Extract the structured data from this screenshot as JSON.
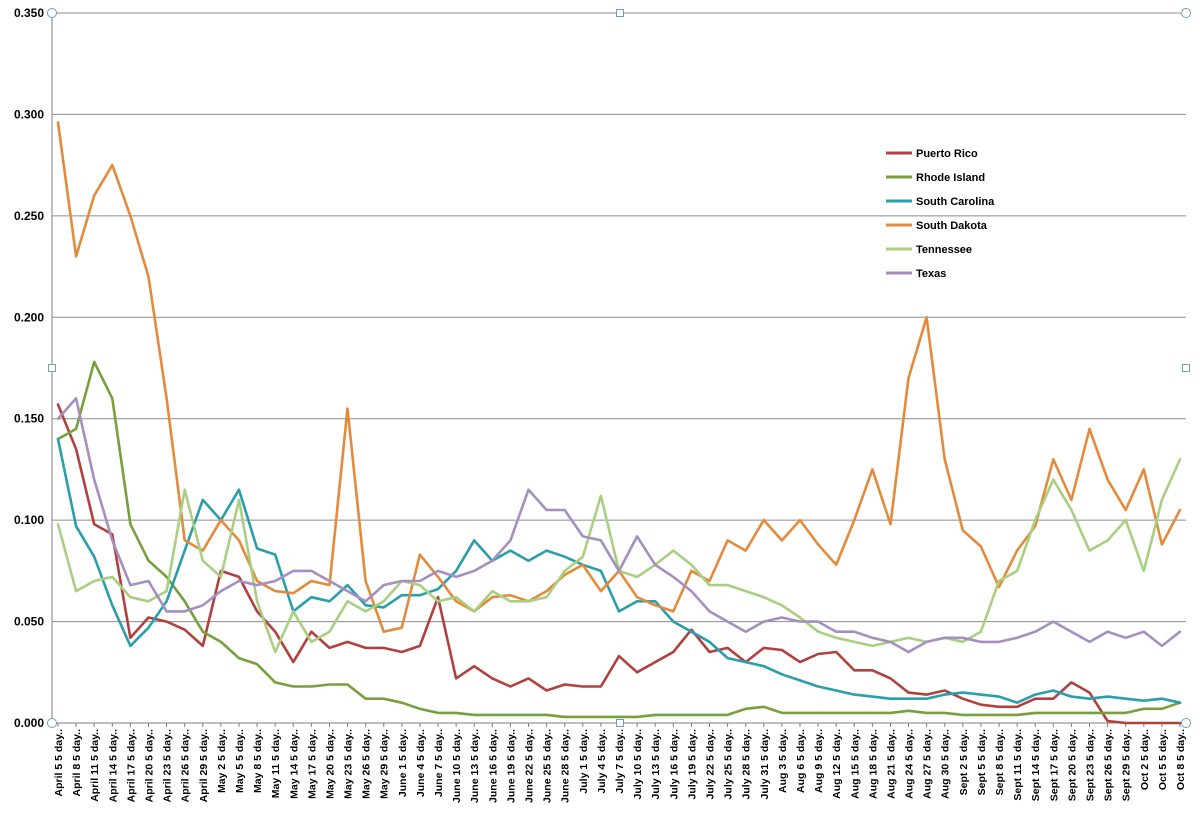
{
  "chart_data": {
    "type": "line",
    "title": "",
    "xlabel": "",
    "ylabel": "",
    "ylim": [
      0,
      0.35
    ],
    "yticks": [
      "0.000",
      "0.050",
      "0.100",
      "0.150",
      "0.200",
      "0.250",
      "0.300",
      "0.350"
    ],
    "ytick_values": [
      0,
      0.05,
      0.1,
      0.15,
      0.2,
      0.25,
      0.3,
      0.35
    ],
    "legend_position": "upper-right",
    "categories": [
      "April 5 5 day..",
      "April 8 5 day..",
      "April 11 5 day..",
      "April 14 5 day..",
      "April 17 5 day..",
      "April 20 5 day..",
      "April 23 5 day..",
      "April 26 5 day..",
      "April 29 5 day..",
      "May 2 5 day..",
      "May 5 5 day..",
      "May 8 5 day..",
      "May 11 5 day..",
      "May 14 5 day..",
      "May 17 5 day..",
      "May 20 5 day..",
      "May 23 5 day..",
      "May 26 5 day..",
      "May 29 5 day..",
      "June 1 5 day..",
      "June 4 5 day..",
      "June 7 5 day..",
      "June 10 5 day..",
      "June 13 5 day..",
      "June 16 5 day..",
      "June 19 5 day..",
      "June 22 5 day..",
      "June 25 5 day..",
      "June 28 5 day..",
      "July 1 5 day..",
      "July 4 5 day..",
      "July 7 5 day..",
      "July 10 5 day..",
      "July 13 5 day..",
      "July 16 5 day..",
      "July 19 5 day..",
      "July 22 5 day..",
      "July 25 5 day..",
      "July 28 5 day..",
      "July 31 5 day..",
      "Aug 3 5 day..",
      "Aug 6 5 day..",
      "Aug 9 5 day..",
      "Aug 12 5 day..",
      "Aug 15 5 day..",
      "Aug 18 5 day..",
      "Aug 21 5 day..",
      "Aug 24 5 day..",
      "Aug 27 5 day..",
      "Aug 30 5 day..",
      "Sept 2 5 day..",
      "Sept 5 5 day..",
      "Sept 8 5 day..",
      "Sept 11 5 day..",
      "Sept 14 5 day..",
      "Sept 17 5 day..",
      "Sept 20 5 day..",
      "Sept 23 5 day..",
      "Sept 26 5 day..",
      "Sept 29 5 day..",
      "Oct 2 5 day..",
      "Oct 5 5 day..",
      "Oct 8 5 day.."
    ],
    "series": [
      {
        "name": "Puerto Rico",
        "color": "#b0413e",
        "values": [
          0.157,
          0.135,
          0.098,
          0.093,
          0.042,
          0.052,
          0.05,
          0.046,
          0.038,
          0.075,
          0.072,
          0.055,
          0.045,
          0.03,
          0.045,
          0.037,
          0.04,
          0.037,
          0.037,
          0.035,
          0.038,
          0.062,
          0.022,
          0.028,
          0.022,
          0.018,
          0.022,
          0.016,
          0.019,
          0.018,
          0.018,
          0.033,
          0.025,
          0.03,
          0.035,
          0.046,
          0.035,
          0.037,
          0.03,
          0.037,
          0.036,
          0.03,
          0.034,
          0.035,
          0.026,
          0.026,
          0.022,
          0.015,
          0.014,
          0.016,
          0.012,
          0.009,
          0.008,
          0.008,
          0.012,
          0.012,
          0.02,
          0.015,
          0.001,
          0.0,
          0.0,
          0.0,
          0.0
        ]
      },
      {
        "name": "Rhode Island",
        "color": "#77a03c",
        "values": [
          0.14,
          0.145,
          0.178,
          0.16,
          0.098,
          0.08,
          0.072,
          0.06,
          0.045,
          0.04,
          0.032,
          0.029,
          0.02,
          0.018,
          0.018,
          0.019,
          0.019,
          0.012,
          0.012,
          0.01,
          0.007,
          0.005,
          0.005,
          0.004,
          0.004,
          0.004,
          0.004,
          0.004,
          0.003,
          0.003,
          0.003,
          0.003,
          0.003,
          0.004,
          0.004,
          0.004,
          0.004,
          0.004,
          0.007,
          0.008,
          0.005,
          0.005,
          0.005,
          0.005,
          0.005,
          0.005,
          0.005,
          0.006,
          0.005,
          0.005,
          0.004,
          0.004,
          0.004,
          0.004,
          0.005,
          0.005,
          0.005,
          0.005,
          0.005,
          0.005,
          0.007,
          0.007,
          0.01
        ]
      },
      {
        "name": "South Carolina",
        "color": "#2a9eab",
        "values": [
          0.14,
          0.097,
          0.082,
          0.058,
          0.038,
          0.047,
          0.06,
          0.085,
          0.11,
          0.1,
          0.115,
          0.086,
          0.083,
          0.055,
          0.062,
          0.06,
          0.068,
          0.058,
          0.057,
          0.063,
          0.063,
          0.066,
          0.075,
          0.09,
          0.08,
          0.085,
          0.08,
          0.085,
          0.082,
          0.078,
          0.075,
          0.055,
          0.06,
          0.06,
          0.05,
          0.045,
          0.04,
          0.032,
          0.03,
          0.028,
          0.024,
          0.021,
          0.018,
          0.016,
          0.014,
          0.013,
          0.012,
          0.012,
          0.012,
          0.014,
          0.015,
          0.014,
          0.013,
          0.01,
          0.014,
          0.016,
          0.013,
          0.012,
          0.013,
          0.012,
          0.011,
          0.012,
          0.01
        ]
      },
      {
        "name": "South Dakota",
        "color": "#e48a3c",
        "values": [
          0.296,
          0.23,
          0.26,
          0.275,
          0.25,
          0.22,
          0.16,
          0.09,
          0.085,
          0.1,
          0.09,
          0.07,
          0.065,
          0.064,
          0.07,
          0.068,
          0.155,
          0.07,
          0.045,
          0.047,
          0.083,
          0.072,
          0.06,
          0.055,
          0.062,
          0.063,
          0.06,
          0.065,
          0.073,
          0.078,
          0.065,
          0.075,
          0.062,
          0.058,
          0.055,
          0.075,
          0.07,
          0.09,
          0.085,
          0.1,
          0.09,
          0.1,
          0.088,
          0.078,
          0.1,
          0.125,
          0.098,
          0.17,
          0.2,
          0.13,
          0.095,
          0.087,
          0.067,
          0.085,
          0.097,
          0.13,
          0.11,
          0.145,
          0.12,
          0.105,
          0.125,
          0.088,
          0.105
        ]
      },
      {
        "name": "Tennessee",
        "color": "#a9cf81",
        "values": [
          0.098,
          0.065,
          0.07,
          0.072,
          0.062,
          0.06,
          0.065,
          0.115,
          0.08,
          0.072,
          0.11,
          0.06,
          0.035,
          0.055,
          0.04,
          0.045,
          0.06,
          0.055,
          0.06,
          0.07,
          0.068,
          0.06,
          0.062,
          0.055,
          0.065,
          0.06,
          0.06,
          0.062,
          0.075,
          0.082,
          0.112,
          0.075,
          0.072,
          0.078,
          0.085,
          0.078,
          0.068,
          0.068,
          0.065,
          0.062,
          0.058,
          0.052,
          0.045,
          0.042,
          0.04,
          0.038,
          0.04,
          0.042,
          0.04,
          0.042,
          0.04,
          0.045,
          0.07,
          0.075,
          0.1,
          0.12,
          0.105,
          0.085,
          0.09,
          0.1,
          0.075,
          0.11,
          0.13
        ]
      },
      {
        "name": "Texas",
        "color": "#a58fc1",
        "values": [
          0.15,
          0.16,
          0.12,
          0.09,
          0.068,
          0.07,
          0.055,
          0.055,
          0.058,
          0.065,
          0.07,
          0.068,
          0.07,
          0.075,
          0.075,
          0.07,
          0.065,
          0.06,
          0.068,
          0.07,
          0.07,
          0.075,
          0.072,
          0.075,
          0.08,
          0.09,
          0.115,
          0.105,
          0.105,
          0.092,
          0.09,
          0.075,
          0.092,
          0.078,
          0.072,
          0.065,
          0.055,
          0.05,
          0.045,
          0.05,
          0.052,
          0.05,
          0.05,
          0.045,
          0.045,
          0.042,
          0.04,
          0.035,
          0.04,
          0.042,
          0.042,
          0.04,
          0.04,
          0.042,
          0.045,
          0.05,
          0.045,
          0.04,
          0.045,
          0.042,
          0.045,
          0.038,
          0.045
        ]
      }
    ]
  }
}
